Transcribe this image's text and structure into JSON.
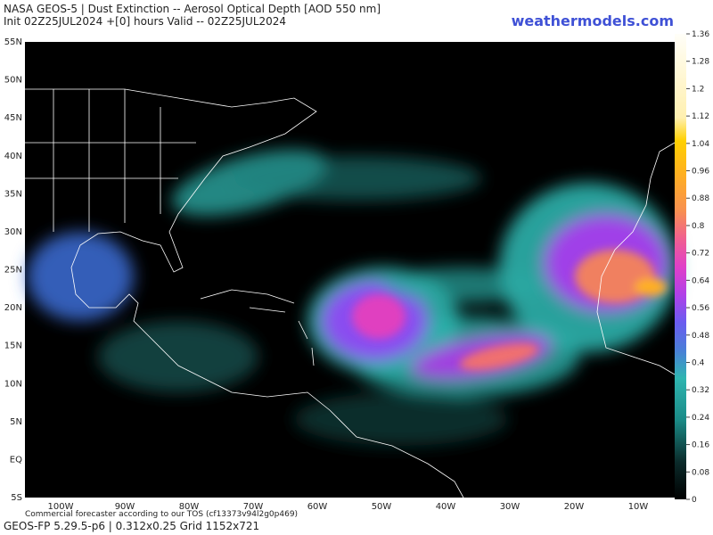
{
  "header": {
    "title": "NASA GEOS-5 | Dust Extinction -- Aerosol Optical Depth [AOD 550 nm]",
    "subtitle": "Init 02Z25JUL2024 +[0] hours Valid -- 02Z25JUL2024",
    "brand": "weathermodels.com"
  },
  "map": {
    "lat_labels": [
      "55N",
      "50N",
      "45N",
      "40N",
      "35N",
      "30N",
      "25N",
      "20N",
      "15N",
      "10N",
      "5N",
      "EQ",
      "5S"
    ],
    "lon_labels": [
      "100W",
      "90W",
      "80W",
      "70W",
      "60W",
      "50W",
      "40W",
      "30W",
      "20W",
      "10W"
    ]
  },
  "colorbar": {
    "range": [
      0,
      1.36
    ],
    "ticks": [
      0,
      0.08,
      0.16,
      0.24,
      0.32,
      0.4,
      0.48,
      0.56,
      0.64,
      0.72,
      0.8,
      0.88,
      0.96,
      1.04,
      1.12,
      1.2,
      1.28,
      1.36
    ]
  },
  "footer": {
    "notice": "Commercial forecaster according to our TOS (cf13373v94l2g0p469)",
    "model": "GEOS-FP 5.29.5-p6 | 0.312x0.25 Grid 1152x721"
  }
}
